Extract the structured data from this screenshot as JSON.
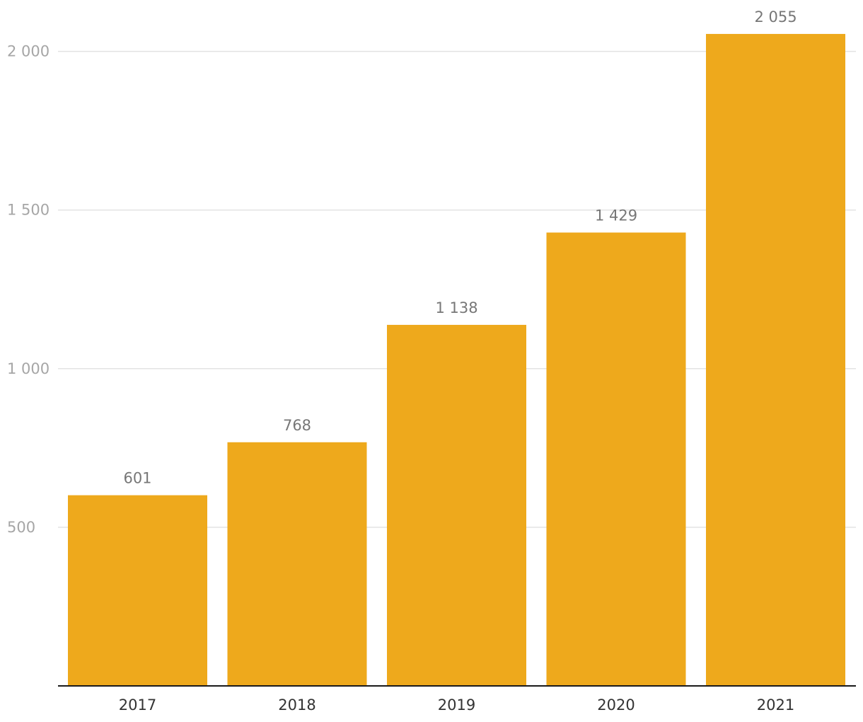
{
  "chart_data": {
    "type": "bar",
    "categories": [
      "2017",
      "2018",
      "2019",
      "2020",
      "2021"
    ],
    "values": [
      601,
      768,
      1138,
      1429,
      2055
    ],
    "value_labels": [
      "601",
      "768",
      "1 138",
      "1 429",
      "2 055"
    ],
    "title": "",
    "xlabel": "",
    "ylabel": "",
    "ylim": [
      0,
      2200
    ],
    "yticks": [
      500,
      1000,
      1500,
      2000
    ],
    "ytick_labels": [
      "500",
      "1 000",
      "1 500",
      "2 000"
    ],
    "grid": true,
    "legend": "none",
    "colors": {
      "bar": "#EEA91C",
      "grid": "#E3E3E3",
      "axis": "#1A1A1A",
      "ytick_text": "#A6A6A6",
      "xtick_text": "#333333",
      "label_text": "#777777"
    }
  }
}
